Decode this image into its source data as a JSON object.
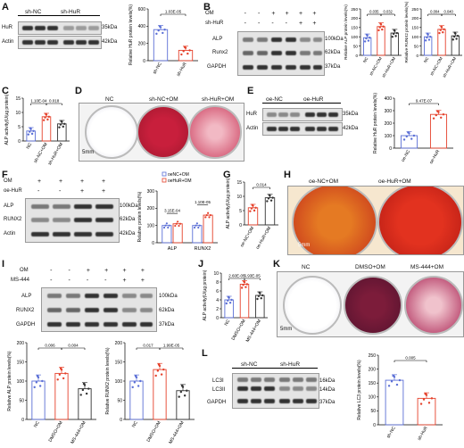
{
  "panels": {
    "A": {
      "label": "A",
      "groups": [
        "sh-NC",
        "sh-HuR"
      ],
      "rows": [
        {
          "name": "HuR",
          "kda": "35kDa"
        },
        {
          "name": "Actin",
          "kda": "42kDa"
        }
      ],
      "chart": {
        "ylabel": "Relative HuR protein levels(%)",
        "categories": [
          "sh-NC",
          "sh-HuR"
        ],
        "values": [
          360,
          120
        ],
        "ylim": [
          0,
          600
        ],
        "yticks": [
          "0",
          "200",
          "400",
          "600"
        ],
        "pvalue": "1.03E-05",
        "colors": [
          "#5b6fd6",
          "#e5412b"
        ]
      }
    },
    "B": {
      "label": "B",
      "treat_om": [
        "-",
        "-",
        "+",
        "+",
        "+",
        "+"
      ],
      "treat_sh": [
        "-",
        "-",
        "-",
        "-",
        "+",
        "+"
      ],
      "treat_om_label": "OM",
      "treat_sh_label": "sh-HuR",
      "rows": [
        {
          "name": "ALP",
          "kda": "100kDa"
        },
        {
          "name": "Runx2",
          "kda": "62kDa"
        },
        {
          "name": "GAPDH",
          "kda": "37kDa"
        }
      ],
      "chart_alp": {
        "ylabel": "Relative ALP protein levels(%)",
        "categories": [
          "NC",
          "sh-NC+OM",
          "sh-HuR+OM"
        ],
        "values": [
          95,
          155,
          120
        ],
        "ylim": [
          0,
          250
        ],
        "yticks": [
          "0",
          "50",
          "100",
          "150",
          "200",
          "250"
        ],
        "pvalues": [
          "0.035",
          "0.032"
        ]
      },
      "chart_runx": {
        "ylabel": "Relative RUNX2 protein levels(%)",
        "categories": [
          "NC",
          "sh-NC+OM",
          "sh-HuR+OM"
        ],
        "values": [
          100,
          140,
          105
        ],
        "ylim": [
          0,
          250
        ],
        "yticks": [
          "0",
          "50",
          "100",
          "150",
          "200",
          "250"
        ],
        "pvalues": [
          "0.004",
          "0.040"
        ]
      }
    },
    "C": {
      "label": "C",
      "chart": {
        "ylabel": "ALP activity(U/μg protein)",
        "categories": [
          "NC",
          "sh-NC+OM",
          "sh-HuR+OM"
        ],
        "values": [
          3.5,
          8.5,
          6.0
        ],
        "ylim": [
          0,
          15
        ],
        "yticks": [
          "0",
          "5",
          "10",
          "15"
        ],
        "pvalues": [
          "1.10E-04",
          "0.018"
        ]
      }
    },
    "D": {
      "label": "D",
      "titles": [
        "NC",
        "sh-NC+OM",
        "sh-HuR+OM"
      ],
      "scale": "5mm"
    },
    "E": {
      "label": "E",
      "groups": [
        "oe-NC",
        "oe-HuR"
      ],
      "rows": [
        {
          "name": "HuR",
          "kda": "35kDa"
        },
        {
          "name": "Actin",
          "kda": "42kDa"
        }
      ],
      "chart": {
        "ylabel": "Relative HuR protein levels(%)",
        "categories": [
          "oe-NC",
          "oe-HuR"
        ],
        "values": [
          100,
          270
        ],
        "ylim": [
          0,
          400
        ],
        "yticks": [
          "0",
          "100",
          "200",
          "300",
          "400"
        ],
        "pvalue": "9.47E-07"
      }
    },
    "F": {
      "label": "F",
      "treat_om": [
        "+",
        "+",
        "+",
        "+"
      ],
      "treat_oe": [
        "-",
        "-",
        "+",
        "+"
      ],
      "treat_om_label": "OM",
      "treat_oe_label": "oe-HuR",
      "rows": [
        {
          "name": "ALP",
          "kda": "100kDa"
        },
        {
          "name": "RUNX2",
          "kda": "62kDa"
        },
        {
          "name": "Actin",
          "kda": "42kDa"
        }
      ],
      "chart": {
        "ylabel": "Relative protein levels(%)",
        "categories": [
          "ALP",
          "RUNX2"
        ],
        "series": [
          {
            "name": "oeNC+OM",
            "values": [
              100,
              100
            ]
          },
          {
            "name": "oeHuR+OM",
            "values": [
              110,
              160
            ]
          }
        ],
        "ylim": [
          0,
          300
        ],
        "yticks": [
          "0",
          "100",
          "200",
          "300"
        ],
        "pvalues": [
          "3.15E-04",
          "1.10E-05"
        ]
      }
    },
    "G": {
      "label": "G",
      "chart": {
        "ylabel": "ALP activity(U/μg protein)",
        "categories": [
          "oe-NC+OM",
          "oe-HuR+OM"
        ],
        "values": [
          6.0,
          9.5
        ],
        "ylim": [
          0,
          15
        ],
        "yticks": [
          "0",
          "5",
          "10",
          "15"
        ],
        "pvalue": "0.014"
      }
    },
    "H": {
      "label": "H",
      "titles": [
        "oe-NC+OM",
        "oe-HuR+OM"
      ],
      "scale": "5mm"
    },
    "I": {
      "label": "I",
      "treat_om": [
        "-",
        "-",
        "+",
        "+",
        "+",
        "+"
      ],
      "treat_ms": [
        "-",
        "-",
        "-",
        "-",
        "+",
        "+"
      ],
      "treat_om_label": "OM",
      "treat_ms_label": "MS-444",
      "rows": [
        {
          "name": "ALP",
          "kda": "100kDa"
        },
        {
          "name": "RUNX2",
          "kda": "62kDa"
        },
        {
          "name": "GAPDH",
          "kda": "37kDa"
        }
      ],
      "chart_alp": {
        "ylabel": "Relative ALP protein levels(%)",
        "categories": [
          "NC",
          "DMSO+OM",
          "MS-444+OM"
        ],
        "values": [
          100,
          120,
          80
        ],
        "ylim": [
          0,
          200
        ],
        "yticks": [
          "0",
          "50",
          "100",
          "150",
          "200"
        ],
        "pvalues": [
          "0.006",
          "0.004"
        ]
      },
      "chart_runx": {
        "ylabel": "Relative RUNX2 protein levels(%)",
        "categories": [
          "NC",
          "DMSO+OM",
          "MS-444+OM"
        ],
        "values": [
          100,
          130,
          75
        ],
        "ylim": [
          0,
          200
        ],
        "yticks": [
          "0",
          "50",
          "100",
          "150",
          "200"
        ],
        "pvalues": [
          "0.017",
          "1.99E-05"
        ]
      }
    },
    "J": {
      "label": "J",
      "chart": {
        "ylabel": "ALP activity(U/μg protein)",
        "categories": [
          "NC",
          "DMSO+OM",
          "MS-444+OM"
        ],
        "values": [
          4.0,
          7.5,
          5.0
        ],
        "ylim": [
          0,
          10
        ],
        "yticks": [
          "0",
          "2",
          "4",
          "6",
          "8",
          "10"
        ],
        "pvalues": [
          "2.60E-05",
          "6.93E-05"
        ]
      }
    },
    "K": {
      "label": "K",
      "titles": [
        "NC",
        "DMSO+OM",
        "MS-444+OM"
      ],
      "scale": "5mm"
    },
    "L": {
      "label": "L",
      "groups": [
        "sh-NC",
        "sh-HuR"
      ],
      "rows": [
        {
          "name": "LC3I",
          "kda": "16kDa"
        },
        {
          "name": "LC3II",
          "kda": "14kDa"
        },
        {
          "name": "GAPDH",
          "kda": "37kDa"
        }
      ],
      "chart": {
        "ylabel": "Relative LC3 protein levels(%)",
        "categories": [
          "sh-NC",
          "sh-HuR"
        ],
        "values": [
          160,
          95
        ],
        "ylim": [
          0,
          250
        ],
        "yticks": [
          "0",
          "50",
          "100",
          "150",
          "200",
          "250"
        ],
        "pvalue": "0.005"
      }
    }
  },
  "colors": {
    "blue": "#5b6fd6",
    "red": "#e5412b",
    "black": "#333333",
    "stain_red": "#c0263a",
    "stain_orange": "#e07a2a"
  }
}
